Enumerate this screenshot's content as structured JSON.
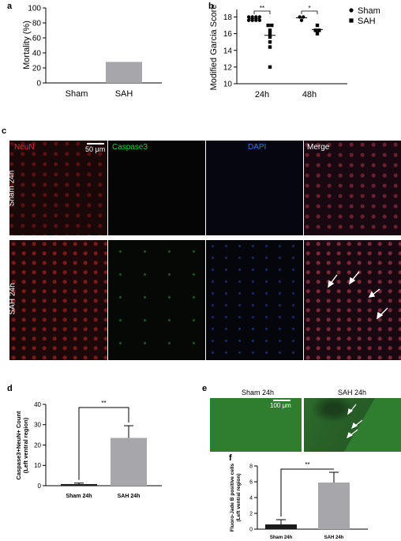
{
  "panels": {
    "a": "a",
    "b": "b",
    "c": "c",
    "d": "d",
    "e": "e",
    "f": "f"
  },
  "colors": {
    "bar_gray": "#a6a6ab",
    "bar_dark": "#1a1a1a",
    "neun_red": "#e03030",
    "caspase_green": "#2ec24a",
    "dapi_blue": "#3a6fe0",
    "merge_white": "#ffffff",
    "fluoro_green": "#2f7d2f"
  },
  "chart_data": [
    {
      "panel": "a",
      "type": "bar",
      "categories": [
        "Sham",
        "SAH"
      ],
      "values": [
        0,
        28
      ],
      "ylabel": "Mortality (%)",
      "ylim": [
        0,
        100
      ],
      "yticks": [
        "0",
        "20",
        "40",
        "60",
        "80",
        "100"
      ]
    },
    {
      "panel": "b",
      "type": "scatter",
      "categories": [
        "24h",
        "48h"
      ],
      "ylabel": "Modified Garcia Score",
      "ylim": [
        10,
        18.9
      ],
      "yticks": [
        "10",
        "12",
        "14",
        "16",
        "18"
      ],
      "series": [
        {
          "name": "Sham",
          "marker": "circle",
          "points": [
            [
              1,
              18
            ],
            [
              1,
              18
            ],
            [
              1,
              18
            ],
            [
              1,
              18
            ],
            [
              1,
              17.6
            ],
            [
              1,
              17.6
            ],
            [
              1,
              17.6
            ],
            [
              1,
              17.6
            ],
            [
              2,
              18
            ],
            [
              2,
              18
            ],
            [
              2,
              17.6
            ]
          ]
        },
        {
          "name": "SAH",
          "marker": "square",
          "points": [
            [
              1,
              17
            ],
            [
              1,
              17
            ],
            [
              1,
              16.4
            ],
            [
              1,
              16
            ],
            [
              1,
              15.6
            ],
            [
              1,
              15
            ],
            [
              1,
              14.4
            ],
            [
              1,
              12
            ],
            [
              2,
              17
            ],
            [
              2,
              16.4
            ],
            [
              2,
              16.4
            ],
            [
              2,
              16
            ]
          ]
        }
      ],
      "means": [
        [
          1,
          17.8
        ],
        [
          1,
          15.8
        ],
        [
          2,
          17.9
        ],
        [
          2,
          16.5
        ]
      ],
      "significance": [
        "**",
        "*"
      ]
    },
    {
      "panel": "d",
      "type": "bar",
      "categories": [
        "Sham 24h",
        "SAH 24h"
      ],
      "values": [
        0.8,
        23.5
      ],
      "errors": [
        0.5,
        6
      ],
      "ylabel_lines": [
        "Caspase3+NeuN+ Count",
        "(Left ventral region)"
      ],
      "ylim": [
        0,
        40
      ],
      "yticks": [
        "0",
        "10",
        "20",
        "30",
        "40"
      ],
      "significance": "**"
    },
    {
      "panel": "f",
      "type": "bar",
      "categories": [
        "Sham 24h",
        "SAH 24h"
      ],
      "values": [
        0.6,
        5.9
      ],
      "errors": [
        0.6,
        1.3
      ],
      "ylabel_lines": [
        "Fluoro-Jade B positive cells",
        "(Left ventral region)"
      ],
      "ylim": [
        0,
        8
      ],
      "yticks": [
        "0",
        "2",
        "4",
        "6",
        "8"
      ],
      "significance": "**"
    }
  ],
  "microscopy_c": {
    "columns": [
      "NeuN",
      "Caspase3",
      "DAPI",
      "Merge"
    ],
    "rows": [
      "Sham 24h",
      "SAH 24h"
    ],
    "scalebar": "50 μm"
  },
  "microscopy_e": {
    "columns": [
      "Sham 24h",
      "SAH 24h"
    ],
    "scalebar": "100 μm"
  }
}
